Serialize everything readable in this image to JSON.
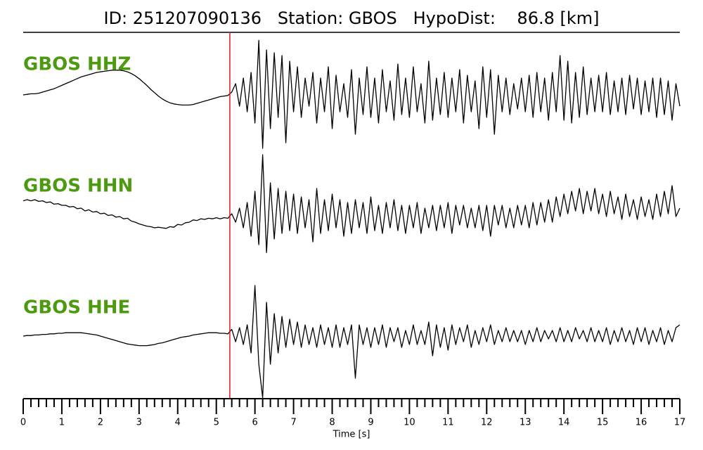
{
  "chart_data": {
    "type": "line",
    "title": "ID: 251207090136   Station: GBOS   HypoDist:    86.8 [km]",
    "x_label": "Time [s]",
    "xlim": [
      0,
      17
    ],
    "xticks": [
      0,
      1,
      2,
      3,
      4,
      5,
      6,
      7,
      8,
      9,
      10,
      11,
      12,
      13,
      14,
      15,
      16,
      17
    ],
    "xminorticks": [
      0.2,
      0.4,
      0.6,
      0.8,
      1.2,
      1.4,
      1.6,
      1.8,
      2.2,
      2.4,
      2.6,
      2.8,
      3.2,
      3.4,
      3.6,
      3.8,
      4.2,
      4.4,
      4.6,
      4.8,
      5.2,
      5.4,
      5.6,
      5.8,
      6.2,
      6.4,
      6.6,
      6.8,
      7.2,
      7.4,
      7.6,
      7.8,
      8.2,
      8.4,
      8.6,
      8.8,
      9.2,
      9.4,
      9.6,
      9.8,
      10.2,
      10.4,
      10.6,
      10.8,
      11.2,
      11.4,
      11.6,
      11.8,
      12.2,
      12.4,
      12.6,
      12.8,
      13.2,
      13.4,
      13.6,
      13.8,
      14.2,
      14.4,
      14.6,
      14.8,
      15.2,
      15.4,
      15.6,
      15.8,
      16.2,
      16.4,
      16.6,
      16.8
    ],
    "pick_time": 5.35,
    "pick_color": "#e41a1c",
    "label_color": "#4c9a10",
    "x": [
      0,
      0.1,
      0.2,
      0.3,
      0.4,
      0.5,
      0.6,
      0.7,
      0.8,
      0.9,
      1,
      1.1,
      1.2,
      1.3,
      1.4,
      1.5,
      1.6,
      1.7,
      1.8,
      1.9,
      2,
      2.1,
      2.2,
      2.3,
      2.4,
      2.5,
      2.6,
      2.7,
      2.8,
      2.9,
      3,
      3.1,
      3.2,
      3.3,
      3.4,
      3.5,
      3.6,
      3.7,
      3.8,
      3.9,
      4,
      4.1,
      4.2,
      4.3,
      4.4,
      4.5,
      4.6,
      4.7,
      4.8,
      4.9,
      5,
      5.1,
      5.2,
      5.3,
      5.4,
      5.5,
      5.6,
      5.7,
      5.8,
      5.9,
      6,
      6.1,
      6.2,
      6.3,
      6.4,
      6.5,
      6.6,
      6.7,
      6.8,
      6.9,
      7,
      7.1,
      7.2,
      7.3,
      7.4,
      7.5,
      7.6,
      7.7,
      7.8,
      7.9,
      8,
      8.1,
      8.2,
      8.3,
      8.4,
      8.5,
      8.6,
      8.7,
      8.8,
      8.9,
      9,
      9.1,
      9.2,
      9.3,
      9.4,
      9.5,
      9.6,
      9.7,
      9.8,
      9.9,
      10,
      10.1,
      10.2,
      10.3,
      10.4,
      10.5,
      10.6,
      10.7,
      10.8,
      10.9,
      11,
      11.1,
      11.2,
      11.3,
      11.4,
      11.5,
      11.6,
      11.7,
      11.8,
      11.9,
      12,
      12.1,
      12.2,
      12.3,
      12.4,
      12.5,
      12.6,
      12.7,
      12.8,
      12.9,
      13,
      13.1,
      13.2,
      13.3,
      13.4,
      13.5,
      13.6,
      13.7,
      13.8,
      13.9,
      14,
      14.1,
      14.2,
      14.3,
      14.4,
      14.5,
      14.6,
      14.7,
      14.8,
      14.9,
      15,
      15.1,
      15.2,
      15.3,
      15.4,
      15.5,
      15.6,
      15.7,
      15.8,
      15.9,
      16,
      16.1,
      16.2,
      16.3,
      16.4,
      16.5,
      16.6,
      16.7,
      16.8,
      16.9,
      17
    ],
    "series": [
      {
        "name": "GBOS HHZ",
        "color": "#000000",
        "values": [
          0.0,
          0.01,
          0.02,
          0.02,
          0.03,
          0.05,
          0.07,
          0.09,
          0.11,
          0.14,
          0.17,
          0.2,
          0.23,
          0.26,
          0.29,
          0.32,
          0.34,
          0.36,
          0.38,
          0.4,
          0.41,
          0.42,
          0.43,
          0.44,
          0.44,
          0.44,
          0.43,
          0.41,
          0.38,
          0.34,
          0.29,
          0.23,
          0.17,
          0.1,
          0.04,
          -0.02,
          -0.07,
          -0.11,
          -0.14,
          -0.16,
          -0.17,
          -0.18,
          -0.18,
          -0.18,
          -0.17,
          -0.15,
          -0.13,
          -0.11,
          -0.09,
          -0.07,
          -0.05,
          -0.03,
          -0.02,
          -0.01,
          0.05,
          0.2,
          -0.2,
          0.3,
          -0.3,
          0.4,
          -0.5,
          0.97,
          -0.95,
          0.8,
          -0.6,
          0.75,
          -0.4,
          0.7,
          -0.85,
          0.6,
          -0.3,
          0.5,
          -0.4,
          0.3,
          -0.2,
          0.4,
          -0.5,
          0.3,
          -0.3,
          0.5,
          -0.6,
          0.35,
          -0.3,
          0.2,
          -0.4,
          0.45,
          -0.7,
          0.3,
          -0.35,
          0.5,
          -0.4,
          0.3,
          -0.5,
          0.45,
          -0.3,
          0.25,
          -0.45,
          0.55,
          -0.35,
          0.3,
          -0.4,
          0.5,
          -0.3,
          0.2,
          -0.5,
          0.6,
          -0.45,
          0.3,
          -0.35,
          0.4,
          -0.4,
          0.3,
          -0.3,
          0.45,
          -0.5,
          0.35,
          -0.3,
          0.25,
          -0.6,
          0.5,
          -0.4,
          0.45,
          -0.7,
          0.35,
          -0.3,
          0.3,
          -0.35,
          0.2,
          -0.25,
          0.3,
          -0.3,
          0.35,
          -0.4,
          0.4,
          -0.3,
          0.3,
          -0.45,
          0.4,
          -0.3,
          0.7,
          -0.45,
          0.6,
          -0.5,
          0.4,
          -0.4,
          0.5,
          -0.35,
          0.3,
          -0.3,
          0.35,
          -0.3,
          0.4,
          -0.35,
          0.25,
          -0.3,
          0.3,
          -0.35,
          0.35,
          -0.25,
          0.3,
          -0.35,
          0.25,
          -0.3,
          0.3,
          -0.4,
          0.3,
          -0.35,
          0.25,
          -0.45,
          0.2,
          -0.2
        ]
      },
      {
        "name": "GBOS HHN",
        "color": "#000000",
        "values": [
          0.28,
          0.3,
          0.28,
          0.3,
          0.27,
          0.28,
          0.25,
          0.26,
          0.22,
          0.23,
          0.2,
          0.2,
          0.17,
          0.18,
          0.14,
          0.15,
          0.1,
          0.12,
          0.08,
          0.09,
          0.05,
          0.06,
          0.02,
          0.03,
          -0.01,
          0.0,
          -0.04,
          -0.03,
          -0.08,
          -0.1,
          -0.13,
          -0.15,
          -0.17,
          -0.18,
          -0.2,
          -0.19,
          -0.2,
          -0.21,
          -0.18,
          -0.19,
          -0.14,
          -0.15,
          -0.11,
          -0.1,
          -0.06,
          -0.07,
          -0.04,
          -0.05,
          -0.03,
          -0.04,
          -0.02,
          -0.04,
          -0.02,
          -0.03,
          0.05,
          -0.1,
          0.15,
          -0.2,
          0.25,
          -0.35,
          0.45,
          -0.5,
          1.1,
          -0.64,
          0.6,
          -0.4,
          0.5,
          -0.3,
          0.45,
          -0.25,
          0.4,
          -0.3,
          0.35,
          -0.2,
          0.3,
          -0.45,
          0.5,
          -0.3,
          0.3,
          -0.25,
          0.4,
          -0.2,
          0.3,
          -0.35,
          0.25,
          -0.3,
          0.3,
          -0.2,
          0.25,
          -0.3,
          0.35,
          -0.25,
          0.2,
          -0.3,
          0.25,
          -0.2,
          0.3,
          -0.25,
          0.2,
          -0.3,
          0.2,
          -0.2,
          0.25,
          -0.3,
          0.15,
          -0.2,
          0.2,
          -0.25,
          0.2,
          -0.2,
          0.25,
          -0.3,
          0.2,
          -0.15,
          0.2,
          -0.2,
          0.15,
          -0.2,
          0.2,
          -0.25,
          0.2,
          -0.35,
          0.2,
          -0.15,
          0.2,
          -0.2,
          0.15,
          -0.2,
          0.2,
          -0.15,
          0.2,
          -0.2,
          0.25,
          -0.15,
          0.25,
          -0.1,
          0.3,
          -0.1,
          0.35,
          0.0,
          0.4,
          0.05,
          0.45,
          0.1,
          0.5,
          0.05,
          0.45,
          0.1,
          0.5,
          0.05,
          0.4,
          0.0,
          0.45,
          0.05,
          0.35,
          -0.05,
          0.4,
          0.0,
          0.3,
          -0.05,
          0.35,
          0.0,
          0.3,
          -0.05,
          0.4,
          0.0,
          0.45,
          0.05,
          0.55,
          0.0,
          0.15
        ]
      },
      {
        "name": "GBOS HHE",
        "color": "#000000",
        "values": [
          0.0,
          0.01,
          0.01,
          0.02,
          0.02,
          0.03,
          0.03,
          0.04,
          0.04,
          0.05,
          0.05,
          0.06,
          0.06,
          0.06,
          0.06,
          0.06,
          0.05,
          0.04,
          0.03,
          0.02,
          0.0,
          -0.02,
          -0.04,
          -0.06,
          -0.08,
          -0.1,
          -0.12,
          -0.14,
          -0.15,
          -0.16,
          -0.17,
          -0.17,
          -0.17,
          -0.16,
          -0.15,
          -0.13,
          -0.12,
          -0.1,
          -0.08,
          -0.06,
          -0.04,
          -0.02,
          -0.01,
          0.0,
          0.02,
          0.03,
          0.04,
          0.05,
          0.06,
          0.06,
          0.06,
          0.05,
          0.05,
          0.04,
          0.12,
          -0.1,
          0.15,
          -0.15,
          0.2,
          -0.3,
          0.9,
          -0.5,
          -1.1,
          0.6,
          -0.5,
          0.4,
          -0.3,
          0.35,
          -0.2,
          0.3,
          -0.15,
          0.25,
          -0.2,
          0.2,
          -0.15,
          0.15,
          -0.2,
          0.2,
          -0.15,
          0.15,
          -0.2,
          0.2,
          -0.2,
          0.15,
          -0.15,
          0.2,
          -0.75,
          0.2,
          -0.15,
          0.15,
          -0.2,
          0.15,
          -0.15,
          0.2,
          -0.2,
          0.15,
          -0.1,
          0.15,
          -0.2,
          0.1,
          -0.15,
          0.2,
          -0.15,
          0.1,
          -0.15,
          0.25,
          -0.35,
          0.2,
          -0.2,
          0.15,
          -0.25,
          0.2,
          -0.15,
          0.15,
          -0.1,
          0.2,
          -0.2,
          0.1,
          -0.15,
          0.15,
          -0.1,
          0.2,
          -0.15,
          0.1,
          -0.1,
          0.15,
          -0.1,
          0.1,
          -0.1,
          0.1,
          -0.15,
          0.1,
          -0.1,
          0.15,
          -0.1,
          0.1,
          -0.05,
          0.1,
          -0.1,
          0.15,
          -0.1,
          0.1,
          -0.1,
          0.15,
          -0.05,
          0.1,
          -0.1,
          0.15,
          -0.1,
          0.1,
          -0.1,
          0.15,
          -0.15,
          0.1,
          -0.1,
          0.15,
          -0.1,
          0.1,
          -0.15,
          0.15,
          -0.1,
          0.15,
          -0.15,
          0.1,
          -0.1,
          0.15,
          -0.15,
          0.1,
          -0.1,
          0.15,
          0.2
        ]
      }
    ]
  }
}
